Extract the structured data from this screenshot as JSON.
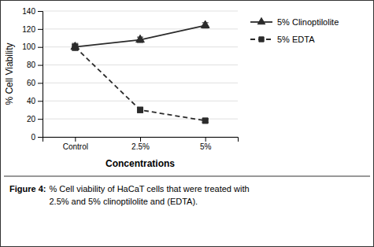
{
  "chart_data": {
    "type": "line",
    "categories": [
      "Control",
      "2.5%",
      "5%"
    ],
    "series": [
      {
        "name": "5% Clinoptilolite",
        "color": "#2b2b2b",
        "marker": "triangle",
        "line_style": "solid",
        "values": [
          100,
          108,
          124
        ],
        "errors": [
          4,
          3,
          3
        ]
      },
      {
        "name": "5% EDTA",
        "color": "#2b2b2b",
        "marker": "square",
        "line_style": "dashed",
        "values": [
          100,
          30,
          18
        ],
        "errors": [
          3,
          3,
          2
        ]
      }
    ],
    "xlabel": "Concentrations",
    "ylabel": "% Cell Viability",
    "ylim": [
      0,
      140
    ],
    "yticks": [
      0,
      20,
      40,
      60,
      80,
      100,
      120,
      140
    ],
    "grid": true,
    "legend": "right",
    "annotations": [
      "Figure 4:",
      "% Cell viability of HaCaT cells that were treated with\n2.5% and 5% clinoptilolite and (EDTA)."
    ]
  }
}
